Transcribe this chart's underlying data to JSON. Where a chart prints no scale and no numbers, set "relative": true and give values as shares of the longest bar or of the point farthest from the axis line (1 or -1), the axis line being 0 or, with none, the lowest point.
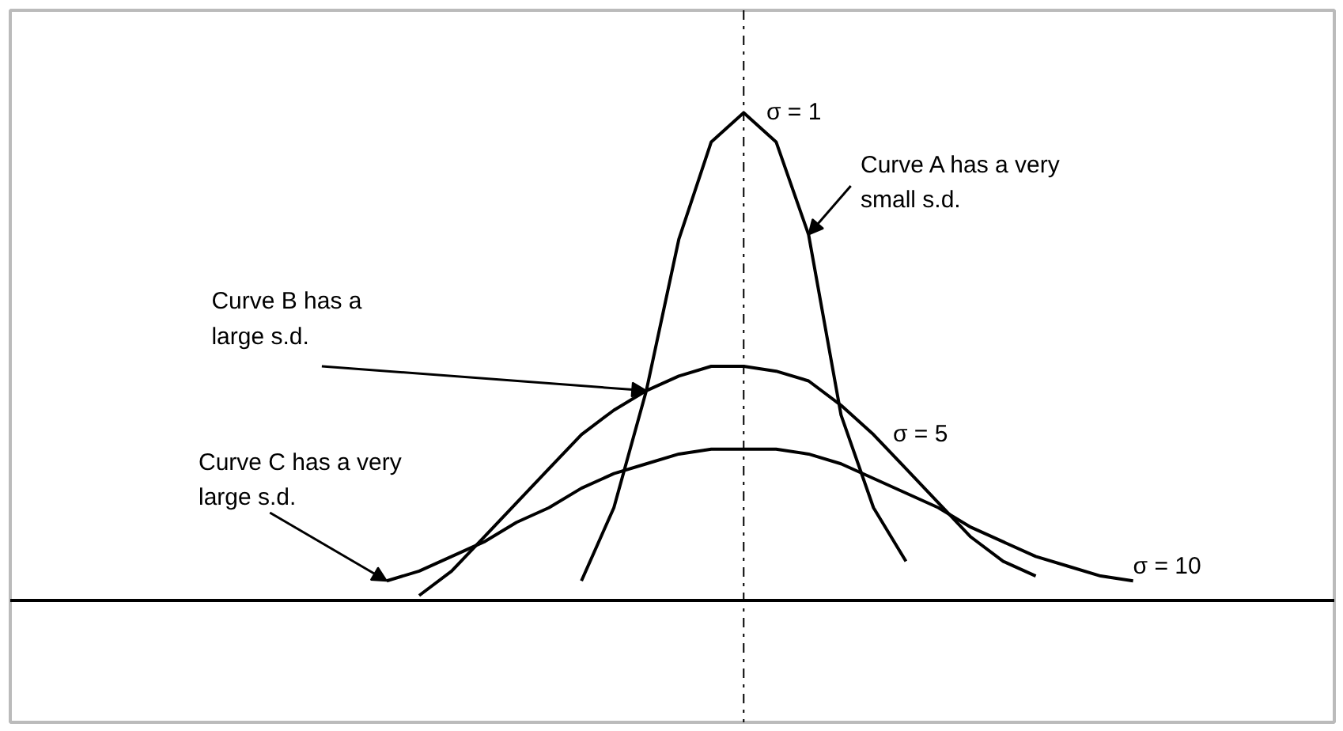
{
  "chart_data": {
    "type": "line",
    "relative": true,
    "grid": false,
    "marker": "none",
    "line_style": "solid",
    "categories": [
      null,
      null,
      null,
      null,
      null,
      null,
      null,
      null,
      null,
      null,
      null,
      null,
      null,
      null,
      null,
      null,
      null,
      null,
      null,
      null,
      null,
      null,
      null,
      null,
      null
    ],
    "series": [
      {
        "name": "σ = 1",
        "color": "#000000",
        "values": [
          null,
          null,
          null,
          null,
          null,
          null,
          null,
          0.04,
          0.19,
          0.43,
          0.74,
          0.94,
          1.0,
          0.94,
          0.75,
          0.38,
          0.19,
          0.08,
          null,
          null,
          null,
          null,
          null,
          null,
          null
        ]
      },
      {
        "name": "σ = 5",
        "color": "#000000",
        "values": [
          null,
          null,
          0.01,
          0.06,
          0.13,
          0.2,
          0.27,
          0.34,
          0.39,
          0.43,
          0.46,
          0.48,
          0.48,
          0.47,
          0.45,
          0.4,
          0.34,
          0.27,
          0.2,
          0.13,
          0.08,
          0.05,
          null,
          null,
          null
        ]
      },
      {
        "name": "σ = 10",
        "color": "#000000",
        "values": [
          null,
          0.04,
          0.06,
          0.09,
          0.12,
          0.16,
          0.19,
          0.23,
          0.26,
          0.28,
          0.3,
          0.31,
          0.31,
          0.31,
          0.3,
          0.28,
          0.25,
          0.22,
          0.19,
          0.15,
          0.12,
          0.09,
          0.07,
          0.05,
          0.04
        ]
      }
    ],
    "annotations": [
      "Curve A has a very\nsmall s.d.",
      "Curve B has a\nlarge s.d.",
      "Curve C has a very\nlarge s.d."
    ]
  }
}
